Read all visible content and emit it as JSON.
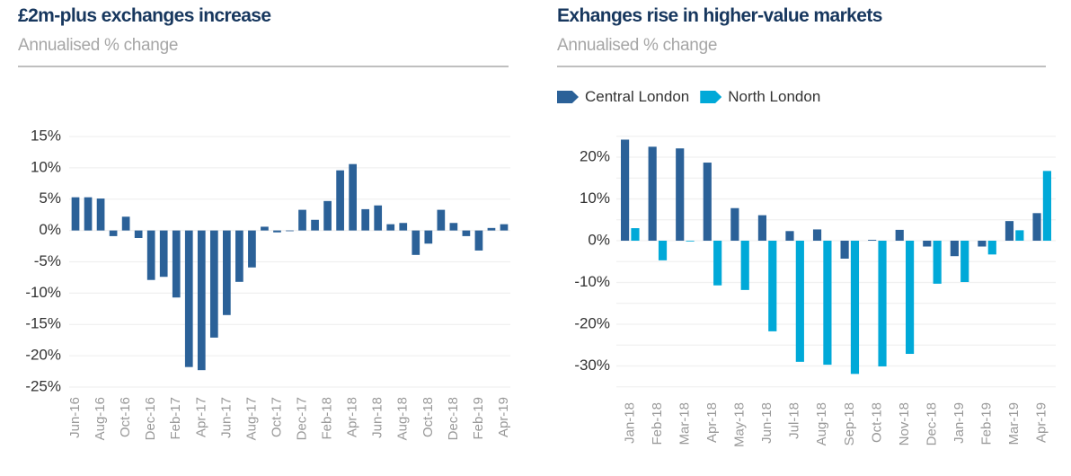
{
  "charts": {
    "left": {
      "title": "£2m-plus exchanges increase",
      "subtitle": "Annualised % change"
    },
    "right": {
      "title": "Exhanges rise in higher-value markets",
      "subtitle": "Annualised % change",
      "legend": [
        {
          "label": "Central London",
          "color": "#2b6198"
        },
        {
          "label": "North London",
          "color": "#00a9d8"
        }
      ]
    }
  },
  "chart_data": [
    {
      "type": "bar",
      "title": "£2m-plus exchanges increase",
      "subtitle": "Annualised % change",
      "xlabel": "",
      "ylabel": "",
      "ylim": [
        -25,
        15
      ],
      "yticks": [
        15,
        10,
        5,
        0,
        -5,
        -10,
        -15,
        -20,
        -25
      ],
      "ytick_labels": [
        "15%",
        "10%",
        "5%",
        "0%",
        "-5%",
        "-10%",
        "-15%",
        "-20%",
        "-25%"
      ],
      "grid": true,
      "color": "#2b6198",
      "categories": [
        "Jun-16",
        "Jul-16",
        "Aug-16",
        "Sep-16",
        "Oct-16",
        "Nov-16",
        "Dec-16",
        "Jan-17",
        "Feb-17",
        "Mar-17",
        "Apr-17",
        "May-17",
        "Jun-17",
        "Jul-17",
        "Aug-17",
        "Sep-17",
        "Oct-17",
        "Nov-17",
        "Dec-17",
        "Jan-18",
        "Feb-18",
        "Mar-18",
        "Apr-18",
        "May-18",
        "Jun-18",
        "Jul-18",
        "Aug-18",
        "Sep-18",
        "Oct-18",
        "Nov-18",
        "Dec-18",
        "Jan-19",
        "Feb-19",
        "Mar-19",
        "Apr-19"
      ],
      "xtick_labels": [
        "Jun-16",
        "",
        "Aug-16",
        "",
        "Oct-16",
        "",
        "Dec-16",
        "",
        "Feb-17",
        "",
        "Apr-17",
        "",
        "Jun-17",
        "",
        "Aug-17",
        "",
        "Oct-17",
        "",
        "Dec-17",
        "",
        "Feb-18",
        "",
        "Apr-18",
        "",
        "Jun-18",
        "",
        "Aug-18",
        "",
        "Oct-18",
        "",
        "Dec-18",
        "",
        "Feb-19",
        "",
        "Apr-19"
      ],
      "values": [
        5.3,
        5.3,
        5.1,
        -0.9,
        2.2,
        -1.2,
        -7.9,
        -7.4,
        -10.7,
        -21.8,
        -22.3,
        -17.1,
        -13.5,
        -8.2,
        -5.9,
        0.6,
        -0.3,
        0.0,
        3.3,
        1.7,
        4.7,
        9.6,
        10.6,
        3.4,
        4.0,
        1.0,
        1.2,
        -3.9,
        -2.1,
        3.3,
        1.2,
        -0.9,
        -3.2,
        0.4,
        1.0
      ]
    },
    {
      "type": "bar",
      "title": "Exhanges rise in higher-value markets",
      "subtitle": "Annualised % change",
      "xlabel": "",
      "ylabel": "",
      "ylim": [
        -35,
        25
      ],
      "yticks": [
        20,
        10,
        0,
        -10,
        -20,
        -30
      ],
      "ytick_labels": [
        "20%",
        "10%",
        "0%",
        "-10%",
        "-20%",
        "-30%"
      ],
      "grid": true,
      "legend_position": "top-left",
      "categories": [
        "Jan-18",
        "Feb-18",
        "Mar-18",
        "Apr-18",
        "May-18",
        "Jun-18",
        "Jul-18",
        "Aug-18",
        "Sep-18",
        "Oct-18",
        "Nov-18",
        "Dec-18",
        "Jan-19",
        "Feb-19",
        "Mar-19",
        "Apr-19"
      ],
      "series": [
        {
          "name": "Central London",
          "color": "#2b6198",
          "values": [
            24.2,
            22.5,
            22.1,
            18.7,
            7.8,
            6.1,
            2.3,
            2.7,
            -4.3,
            0.2,
            2.6,
            -1.4,
            -3.7,
            -1.4,
            4.7,
            6.6
          ]
        },
        {
          "name": "North London",
          "color": "#00a9d8",
          "values": [
            3.0,
            -4.7,
            0.0,
            -10.7,
            -11.8,
            -21.7,
            -29.0,
            -29.7,
            -31.9,
            -30.1,
            -27.1,
            -10.3,
            -9.9,
            -3.3,
            2.5,
            16.7
          ]
        }
      ]
    }
  ]
}
